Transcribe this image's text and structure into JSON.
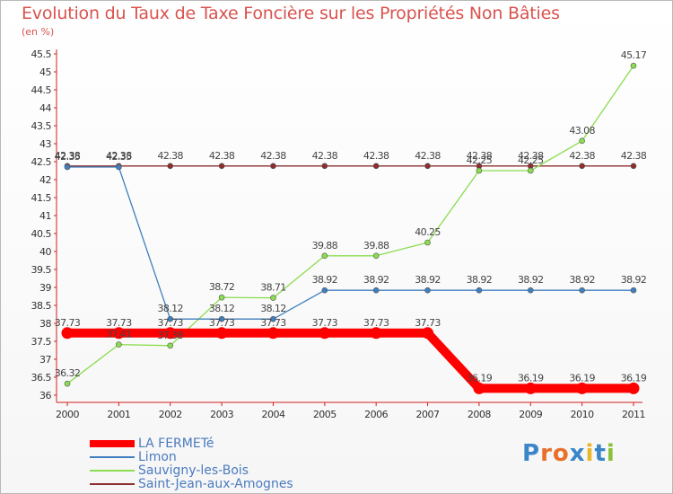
{
  "header": {
    "title": "Evolution du Taux de Taxe Foncière sur les Propriétés Non Bâties",
    "unit": "(en %)"
  },
  "chart_data": {
    "type": "line",
    "title": "Evolution du Taux de Taxe Foncière sur les Propriétés Non Bâties",
    "ylabel": "(en %)",
    "xlabel": "",
    "ylim": [
      36,
      45.5
    ],
    "categories": [
      "2000",
      "2001",
      "2002",
      "2003",
      "2004",
      "2005",
      "2006",
      "2007",
      "2008",
      "2009",
      "2010",
      "2011"
    ],
    "yticks": [
      "36",
      "36.5",
      "37",
      "37.5",
      "38",
      "38.5",
      "39",
      "39.5",
      "40",
      "40.5",
      "41",
      "41.5",
      "42",
      "42.5",
      "43",
      "43.5",
      "44",
      "44.5",
      "45",
      "45.5"
    ],
    "grid": false,
    "series": [
      {
        "name": "LA FERMETé",
        "color": "#ff0000",
        "values": [
          37.73,
          37.73,
          37.73,
          37.73,
          37.73,
          37.73,
          37.73,
          37.73,
          36.19,
          36.19,
          36.19,
          36.19
        ],
        "labels": [
          "37.73",
          "37.73",
          "37.73",
          "37.73",
          "37.73",
          "37.73",
          "37.73",
          "37.73",
          "36.19",
          "36.19",
          "36.19",
          "36.19"
        ]
      },
      {
        "name": "Limon",
        "color": "#3f7fbf",
        "values": [
          42.35,
          42.35,
          38.12,
          38.12,
          38.12,
          38.92,
          38.92,
          38.92,
          38.92,
          38.92,
          38.92,
          38.92
        ],
        "labels": [
          "42.35",
          "42.35",
          "38.12",
          "38.12",
          "38.12",
          "38.92",
          "38.92",
          "38.92",
          "38.92",
          "38.92",
          "38.92",
          "38.92"
        ]
      },
      {
        "name": "Sauvigny-les-Bois",
        "color": "#8bdc4e",
        "values": [
          36.32,
          37.41,
          37.38,
          38.72,
          38.71,
          39.88,
          39.88,
          40.25,
          42.25,
          42.25,
          43.08,
          45.17
        ],
        "labels": [
          "36.32",
          "37.41",
          "37.38",
          "38.72",
          "38.71",
          "39.88",
          "39.88",
          "40.25",
          "42.25",
          "42.25",
          "43.08",
          "45.17"
        ]
      },
      {
        "name": "Saint-Jean-aux-Amognes",
        "color": "#8b2e2e",
        "values": [
          42.38,
          42.38,
          42.38,
          42.38,
          42.38,
          42.38,
          42.38,
          42.38,
          42.38,
          42.38,
          42.38,
          42.38
        ],
        "labels": [
          "42.38",
          "42.38",
          "42.38",
          "42.38",
          "42.38",
          "42.38",
          "42.38",
          "42.38",
          "42.38",
          "42.38",
          "42.38",
          "42.38"
        ]
      }
    ]
  },
  "logo": {
    "text": "Proxiti"
  }
}
